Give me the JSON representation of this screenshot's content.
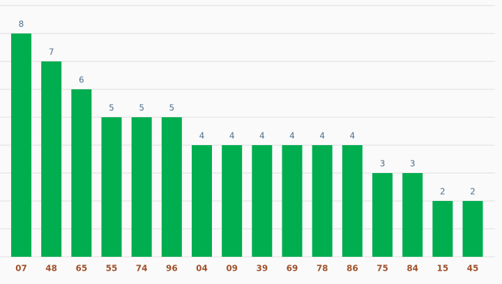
{
  "chart_data": {
    "type": "bar",
    "categories": [
      "07",
      "48",
      "65",
      "55",
      "74",
      "96",
      "04",
      "09",
      "39",
      "69",
      "78",
      "86",
      "75",
      "84",
      "15",
      "45"
    ],
    "values": [
      8,
      7,
      6,
      5,
      5,
      5,
      4,
      4,
      4,
      4,
      4,
      4,
      3,
      3,
      2,
      2
    ],
    "color": "#00ad4f",
    "ylim": [
      0,
      9
    ],
    "yticks": [
      0,
      1,
      2,
      3,
      4,
      5,
      6,
      7,
      8,
      9
    ],
    "grid": true
  }
}
